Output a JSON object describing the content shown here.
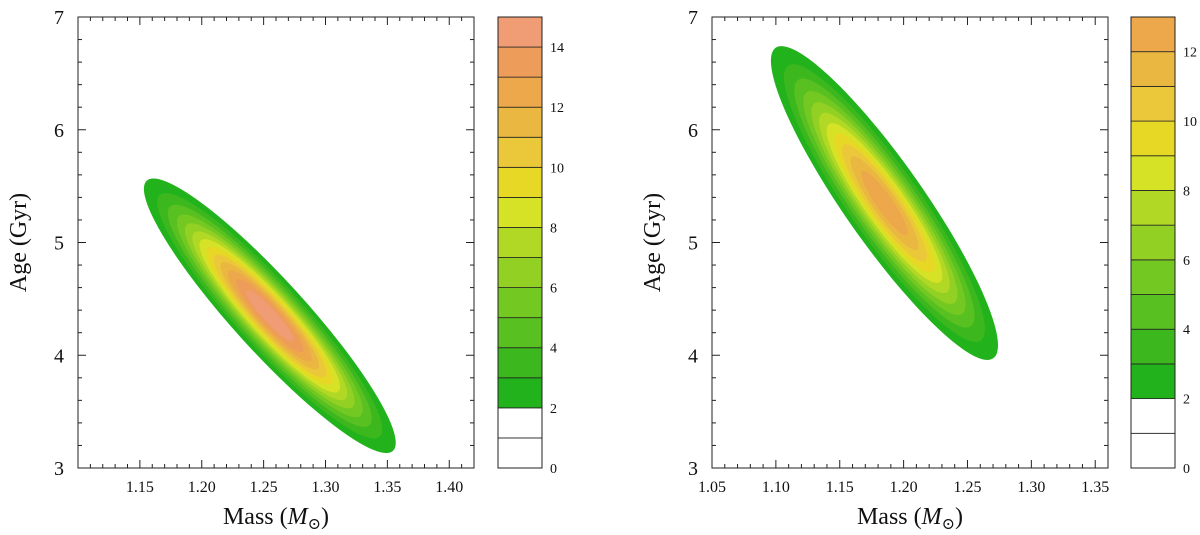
{
  "chart_data": [
    {
      "type": "heatmap",
      "subtype": "filled-contour",
      "xlabel_text": "Mass (",
      "xlabel_symbol": "M",
      "xlabel_subscript": "⊙",
      "xlabel_close": ")",
      "ylabel": "Age (Gyr)",
      "xlim": [
        1.1,
        1.42
      ],
      "ylim": [
        3,
        7
      ],
      "xticks": [
        1.15,
        1.2,
        1.25,
        1.3,
        1.35,
        1.4
      ],
      "xtick_labels": [
        "1.15",
        "1.20",
        "1.25",
        "1.30",
        "1.35",
        "1.40"
      ],
      "yticks": [
        3,
        4,
        5,
        6,
        7
      ],
      "ytick_labels": [
        "3",
        "4",
        "5",
        "6",
        "7"
      ],
      "distribution": {
        "peak_mass": 1.255,
        "peak_age": 4.35,
        "tip_upper": {
          "mass": 1.175,
          "age": 5.55
        },
        "tip_lower": {
          "mass": 1.37,
          "age": 3.2
        },
        "half_width_age": 0.2,
        "peak_value": 15
      },
      "colorbar": {
        "min": 0,
        "max": 15,
        "step": 1,
        "tick_values": [
          0,
          2,
          4,
          6,
          8,
          10,
          12,
          14
        ],
        "tick_labels": [
          "0",
          "2",
          "4",
          "6",
          "8",
          "10",
          "12",
          "14"
        ],
        "lowest_filled_level": 2
      }
    },
    {
      "type": "heatmap",
      "subtype": "filled-contour",
      "xlabel_text": "Mass (",
      "xlabel_symbol": "M",
      "xlabel_subscript": "⊙",
      "xlabel_close": ")",
      "ylabel": "Age (Gyr)",
      "xlim": [
        1.05,
        1.36
      ],
      "ylim": [
        3,
        7
      ],
      "xticks": [
        1.05,
        1.1,
        1.15,
        1.2,
        1.25,
        1.3,
        1.35
      ],
      "xtick_labels": [
        "1.05",
        "1.10",
        "1.15",
        "1.20",
        "1.25",
        "1.30",
        "1.35"
      ],
      "yticks": [
        3,
        4,
        5,
        6,
        7
      ],
      "ytick_labels": [
        "3",
        "4",
        "5",
        "6",
        "7"
      ],
      "distribution": {
        "peak_mass": 1.185,
        "peak_age": 5.35,
        "tip_upper": {
          "mass": 1.118,
          "age": 6.65
        },
        "tip_lower": {
          "mass": 1.285,
          "age": 3.95
        },
        "half_width_age": 0.22,
        "peak_value": 13
      },
      "colorbar": {
        "min": 0,
        "max": 13,
        "step": 1,
        "tick_values": [
          0,
          2,
          4,
          6,
          8,
          10,
          12
        ],
        "tick_labels": [
          "0",
          "2",
          "4",
          "6",
          "8",
          "10",
          "12"
        ],
        "lowest_filled_level": 2
      }
    }
  ],
  "colormap": [
    "#22b21c",
    "#3cb81e",
    "#58c020",
    "#74c822",
    "#92d024",
    "#b2d826",
    "#d6e226",
    "#e8d826",
    "#eac83a",
    "#eab840",
    "#eca84a",
    "#ee9c5a",
    "#f09c74",
    "#f0a08a"
  ]
}
